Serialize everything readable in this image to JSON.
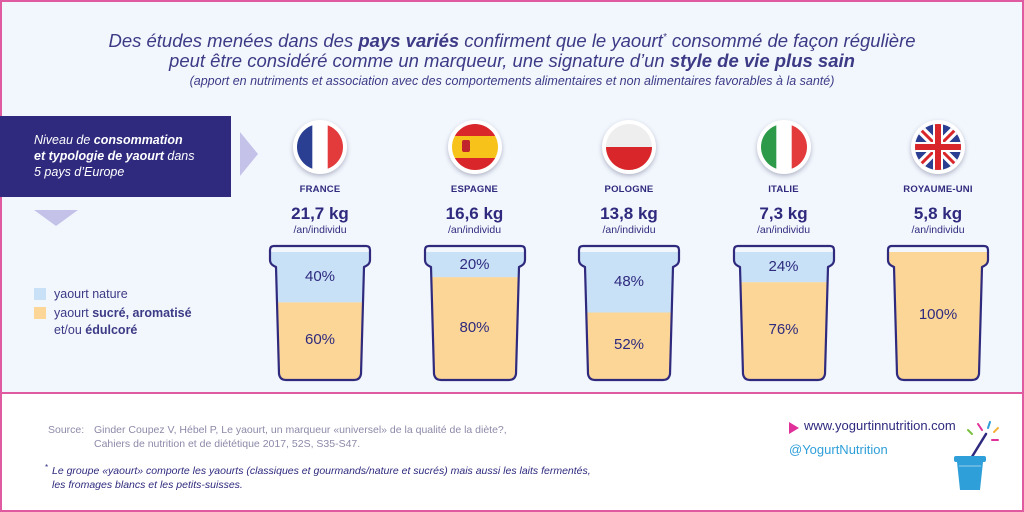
{
  "header": {
    "line1_part1": "Des études menées dans des ",
    "line1_bold": "pays variés",
    "line1_part2": " confirment que le yaourt",
    "line1_star": "*",
    "line1_part3": " consommé de façon régulière",
    "line2_part1": "peut être considéré comme un marqueur, une signature d’un ",
    "line2_bold": "style de vie plus sain",
    "subtitle": "(apport en nutriments et association avec des comportements alimentaires et non alimentaires favorables à la santé)"
  },
  "title_box": {
    "part1": "Niveau de ",
    "bold1": "consommation",
    "bold2": "et typologie de yaourt",
    "part2": " dans",
    "line3": "5 pays d’Europe"
  },
  "legend": {
    "plain_label": "yaourt nature",
    "sweet_part1": "yaourt ",
    "sweet_bold": "sucré, aromatisé",
    "sweet_part2": "et/ou ",
    "sweet_bold2": "édulcoré"
  },
  "colors": {
    "plain": "#c8e1f7",
    "sweet": "#fbd697",
    "outline": "#2f2a7e",
    "accent": "#e05aa2"
  },
  "chart_data": {
    "type": "bar",
    "stacked": true,
    "categories": [
      "FRANCE",
      "ESPAGNE",
      "POLOGNE",
      "ITALIE",
      "ROYAUME-UNI"
    ],
    "consumption_values": [
      "21,7 kg",
      "16,6 kg",
      "13,8 kg",
      "7,3 kg",
      "5,8 kg"
    ],
    "consumption_unit": "/an/individu",
    "series": [
      {
        "name": "yaourt nature",
        "values": [
          40,
          20,
          48,
          24,
          0
        ],
        "labels": [
          "40%",
          "20%",
          "48%",
          "24%",
          ""
        ]
      },
      {
        "name": "yaourt sucré, aromatisé et/ou édulcoré",
        "values": [
          60,
          80,
          52,
          76,
          100
        ],
        "labels": [
          "60%",
          "80%",
          "52%",
          "76%",
          "100%"
        ]
      }
    ],
    "ylim": [
      0,
      100
    ]
  },
  "countries": [
    {
      "flag": "france-flag"
    },
    {
      "flag": "spain-flag"
    },
    {
      "flag": "poland-flag"
    },
    {
      "flag": "italy-flag"
    },
    {
      "flag": "uk-flag"
    }
  ],
  "footer": {
    "source_label": "Source:",
    "source_line1": "Ginder Coupez V, Hébel P, Le yaourt, un marqueur «universel» de la qualité de la diète?,",
    "source_line2": "Cahiers de nutrition et de diététique 2017, 52S, S35-S47.",
    "footnote_star": "*",
    "footnote_line1": "Le groupe «yaourt» comporte les yaourts (classiques et gourmands/nature et sucrés) mais aussi les laits fermentés,",
    "footnote_line2": "les fromages blancs et les petits-suisses.",
    "website": "www.yogurtinnutrition.com",
    "twitter": "@YogurtNutrition",
    "logo_icon": "yogurt-cup-logo-icon"
  }
}
